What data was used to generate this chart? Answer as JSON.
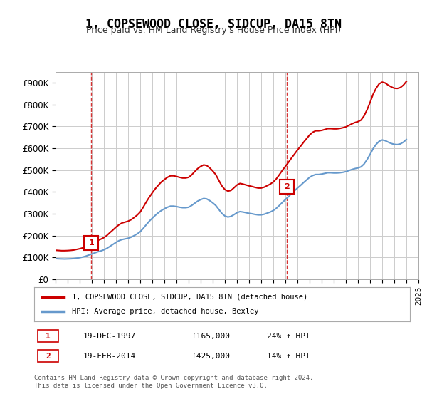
{
  "title": "1, COPSEWOOD CLOSE, SIDCUP, DA15 8TN",
  "subtitle": "Price paid vs. HM Land Registry's House Price Index (HPI)",
  "legend_line1": "1, COPSEWOOD CLOSE, SIDCUP, DA15 8TN (detached house)",
  "legend_line2": "HPI: Average price, detached house, Bexley",
  "transaction1_label": "1",
  "transaction1_date": "19-DEC-1997",
  "transaction1_price": "£165,000",
  "transaction1_hpi": "24% ↑ HPI",
  "transaction2_label": "2",
  "transaction2_date": "19-FEB-2014",
  "transaction2_price": "£425,000",
  "transaction2_hpi": "14% ↑ HPI",
  "footer": "Contains HM Land Registry data © Crown copyright and database right 2024.\nThis data is licensed under the Open Government Licence v3.0.",
  "red_color": "#cc0000",
  "blue_color": "#6699cc",
  "marker_box_color": "#cc0000",
  "ylim": [
    0,
    950000
  ],
  "yticks": [
    0,
    100000,
    200000,
    300000,
    400000,
    500000,
    600000,
    700000,
    800000,
    900000
  ],
  "ytick_labels": [
    "£0",
    "£100K",
    "£200K",
    "£300K",
    "£400K",
    "£500K",
    "£600K",
    "£700K",
    "£800K",
    "£900K"
  ],
  "hpi_years": [
    1995.0,
    1995.25,
    1995.5,
    1995.75,
    1996.0,
    1996.25,
    1996.5,
    1996.75,
    1997.0,
    1997.25,
    1997.5,
    1997.75,
    1998.0,
    1998.25,
    1998.5,
    1998.75,
    1999.0,
    1999.25,
    1999.5,
    1999.75,
    2000.0,
    2000.25,
    2000.5,
    2000.75,
    2001.0,
    2001.25,
    2001.5,
    2001.75,
    2002.0,
    2002.25,
    2002.5,
    2002.75,
    2003.0,
    2003.25,
    2003.5,
    2003.75,
    2004.0,
    2004.25,
    2004.5,
    2004.75,
    2005.0,
    2005.25,
    2005.5,
    2005.75,
    2006.0,
    2006.25,
    2006.5,
    2006.75,
    2007.0,
    2007.25,
    2007.5,
    2007.75,
    2008.0,
    2008.25,
    2008.5,
    2008.75,
    2009.0,
    2009.25,
    2009.5,
    2009.75,
    2010.0,
    2010.25,
    2010.5,
    2010.75,
    2011.0,
    2011.25,
    2011.5,
    2011.75,
    2012.0,
    2012.25,
    2012.5,
    2012.75,
    2013.0,
    2013.25,
    2013.5,
    2013.75,
    2014.0,
    2014.25,
    2014.5,
    2014.75,
    2015.0,
    2015.25,
    2015.5,
    2015.75,
    2016.0,
    2016.25,
    2016.5,
    2016.75,
    2017.0,
    2017.25,
    2017.5,
    2017.75,
    2018.0,
    2018.25,
    2018.5,
    2018.75,
    2019.0,
    2019.25,
    2019.5,
    2019.75,
    2020.0,
    2020.25,
    2020.5,
    2020.75,
    2021.0,
    2021.25,
    2021.5,
    2021.75,
    2022.0,
    2022.25,
    2022.5,
    2022.75,
    2023.0,
    2023.25,
    2023.5,
    2023.75,
    2024.0
  ],
  "hpi_values": [
    95000,
    94000,
    93500,
    93000,
    93500,
    94000,
    95000,
    97000,
    99000,
    102000,
    106000,
    111000,
    116000,
    121000,
    126000,
    130000,
    135000,
    142000,
    151000,
    160000,
    169000,
    177000,
    182000,
    185000,
    188000,
    193000,
    200000,
    208000,
    218000,
    233000,
    250000,
    266000,
    280000,
    293000,
    305000,
    315000,
    323000,
    330000,
    335000,
    335000,
    333000,
    330000,
    328000,
    328000,
    330000,
    338000,
    348000,
    358000,
    365000,
    370000,
    368000,
    360000,
    350000,
    338000,
    320000,
    302000,
    290000,
    285000,
    288000,
    296000,
    305000,
    310000,
    308000,
    305000,
    302000,
    300000,
    297000,
    295000,
    295000,
    298000,
    303000,
    308000,
    315000,
    325000,
    338000,
    352000,
    365000,
    378000,
    392000,
    405000,
    418000,
    430000,
    443000,
    455000,
    467000,
    475000,
    480000,
    480000,
    482000,
    485000,
    488000,
    488000,
    487000,
    487000,
    488000,
    490000,
    493000,
    498000,
    503000,
    507000,
    510000,
    515000,
    528000,
    548000,
    572000,
    598000,
    618000,
    632000,
    638000,
    635000,
    628000,
    622000,
    618000,
    617000,
    620000,
    628000,
    640000
  ],
  "red_years": [
    1995.0,
    1995.25,
    1995.5,
    1995.75,
    1996.0,
    1996.25,
    1996.5,
    1996.75,
    1997.0,
    1997.25,
    1997.5,
    1997.75,
    1998.0,
    1998.25,
    1998.5,
    1998.75,
    1999.0,
    1999.25,
    1999.5,
    1999.75,
    2000.0,
    2000.25,
    2000.5,
    2000.75,
    2001.0,
    2001.25,
    2001.5,
    2001.75,
    2002.0,
    2002.25,
    2002.5,
    2002.75,
    2003.0,
    2003.25,
    2003.5,
    2003.75,
    2004.0,
    2004.25,
    2004.5,
    2004.75,
    2005.0,
    2005.25,
    2005.5,
    2005.75,
    2006.0,
    2006.25,
    2006.5,
    2006.75,
    2007.0,
    2007.25,
    2007.5,
    2007.75,
    2008.0,
    2008.25,
    2008.5,
    2008.75,
    2009.0,
    2009.25,
    2009.5,
    2009.75,
    2010.0,
    2010.25,
    2010.5,
    2010.75,
    2011.0,
    2011.25,
    2011.5,
    2011.75,
    2012.0,
    2012.25,
    2012.5,
    2012.75,
    2013.0,
    2013.25,
    2013.5,
    2013.75,
    2014.0,
    2014.25,
    2014.5,
    2014.75,
    2015.0,
    2015.25,
    2015.5,
    2015.75,
    2016.0,
    2016.25,
    2016.5,
    2016.75,
    2017.0,
    2017.25,
    2017.5,
    2017.75,
    2018.0,
    2018.25,
    2018.5,
    2018.75,
    2019.0,
    2019.25,
    2019.5,
    2019.75,
    2020.0,
    2020.25,
    2020.5,
    2020.75,
    2021.0,
    2021.25,
    2021.5,
    2021.75,
    2022.0,
    2022.25,
    2022.5,
    2022.75,
    2023.0,
    2023.25,
    2023.5,
    2023.75,
    2024.0
  ],
  "red_values": [
    133000,
    132000,
    131000,
    131000,
    131500,
    132500,
    134000,
    137000,
    140000,
    144000,
    150000,
    157000,
    165000,
    171000,
    178000,
    184000,
    191000,
    201000,
    214000,
    226000,
    239000,
    250000,
    258000,
    262000,
    266000,
    273000,
    283000,
    294000,
    308000,
    330000,
    354000,
    376000,
    396000,
    415000,
    431000,
    446000,
    457000,
    467000,
    474000,
    474000,
    471000,
    467000,
    464000,
    464000,
    467000,
    478000,
    493000,
    507000,
    517000,
    524000,
    521000,
    510000,
    496000,
    479000,
    453000,
    428000,
    411000,
    404000,
    407000,
    419000,
    432000,
    439000,
    436000,
    432000,
    428000,
    425000,
    421000,
    418000,
    418000,
    422000,
    429000,
    436000,
    446000,
    460000,
    479000,
    499000,
    517000,
    535000,
    555000,
    573000,
    592000,
    609000,
    627000,
    644000,
    661000,
    673000,
    680000,
    680000,
    682000,
    686000,
    690000,
    690000,
    689000,
    689000,
    691000,
    694000,
    698000,
    705000,
    712000,
    718000,
    722000,
    729000,
    748000,
    776000,
    810000,
    847000,
    875000,
    895000,
    903000,
    899000,
    889000,
    881000,
    875000,
    874000,
    878000,
    889000,
    906000
  ],
  "t1_year": 1997.96,
  "t1_value": 165000,
  "t2_year": 2014.12,
  "t2_value": 425000,
  "vline1_year": 1997.96,
  "vline2_year": 2014.12,
  "bg_color": "#ffffff",
  "grid_color": "#cccccc"
}
